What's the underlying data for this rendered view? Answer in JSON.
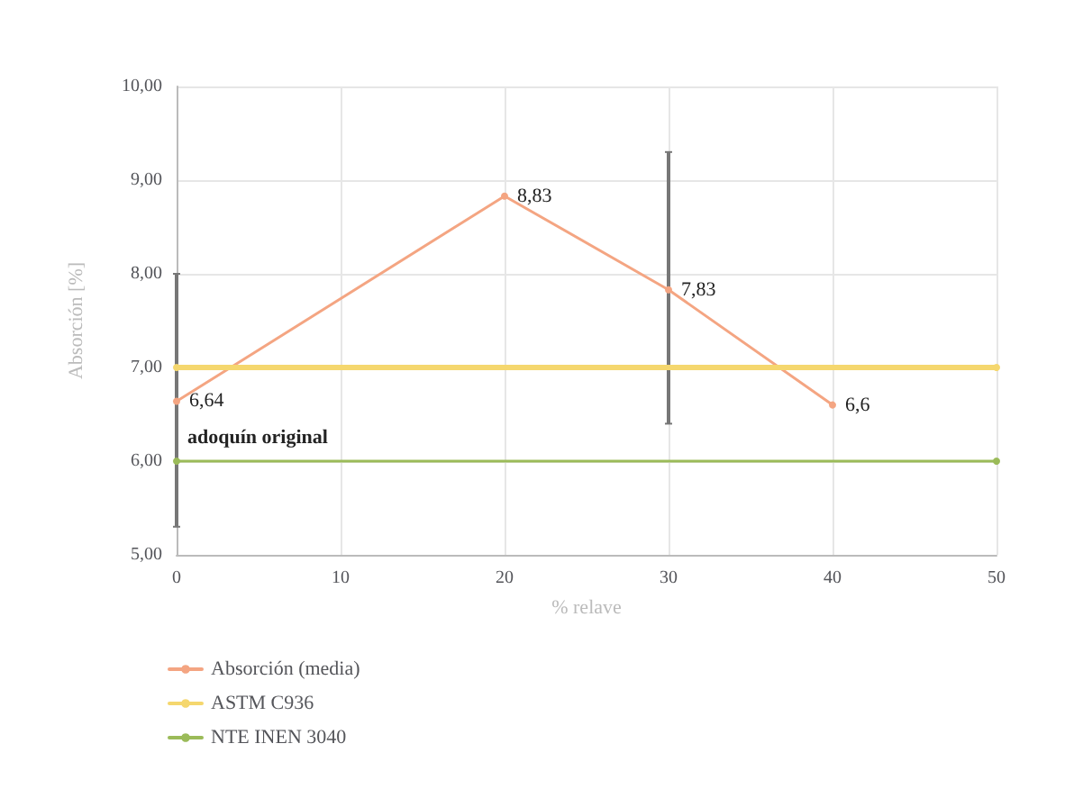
{
  "chart_data": {
    "type": "line",
    "xlabel": "% relave",
    "ylabel": "Absorción [%]",
    "xlim": [
      0,
      50
    ],
    "xticks": [
      0,
      10,
      20,
      30,
      40,
      50
    ],
    "ylim": [
      5,
      10
    ],
    "yticks": [
      {
        "value": 5,
        "label": "5,00"
      },
      {
        "value": 6,
        "label": "6,00"
      },
      {
        "value": 7,
        "label": "7,00"
      },
      {
        "value": 8,
        "label": "8,00"
      },
      {
        "value": 9,
        "label": "9,00"
      },
      {
        "value": 10,
        "label": "10,00"
      }
    ],
    "series": [
      {
        "name": "Absorción (media)",
        "color": "#f4a582",
        "x": [
          0,
          20,
          30,
          40
        ],
        "values": [
          6.64,
          8.83,
          7.83,
          6.6
        ],
        "value_labels": [
          "6,64",
          "8,83",
          "7,83",
          "6,6"
        ],
        "errors": [
          [
            5.3,
            8.0
          ],
          null,
          [
            6.4,
            9.3
          ],
          null
        ]
      },
      {
        "name": "ASTM C936",
        "color": "#f5d76e",
        "x": [
          0,
          50
        ],
        "values": [
          7,
          7
        ]
      },
      {
        "name": "NTE INEN 3040",
        "color": "#9bbb59",
        "x": [
          0,
          50
        ],
        "values": [
          6,
          6
        ]
      }
    ],
    "annotations": [
      {
        "text": "adoquín original",
        "x": 0,
        "y": 6.25
      }
    ],
    "grid": true,
    "legend": "bottom left",
    "marker": "circle",
    "line_style": "solid"
  }
}
